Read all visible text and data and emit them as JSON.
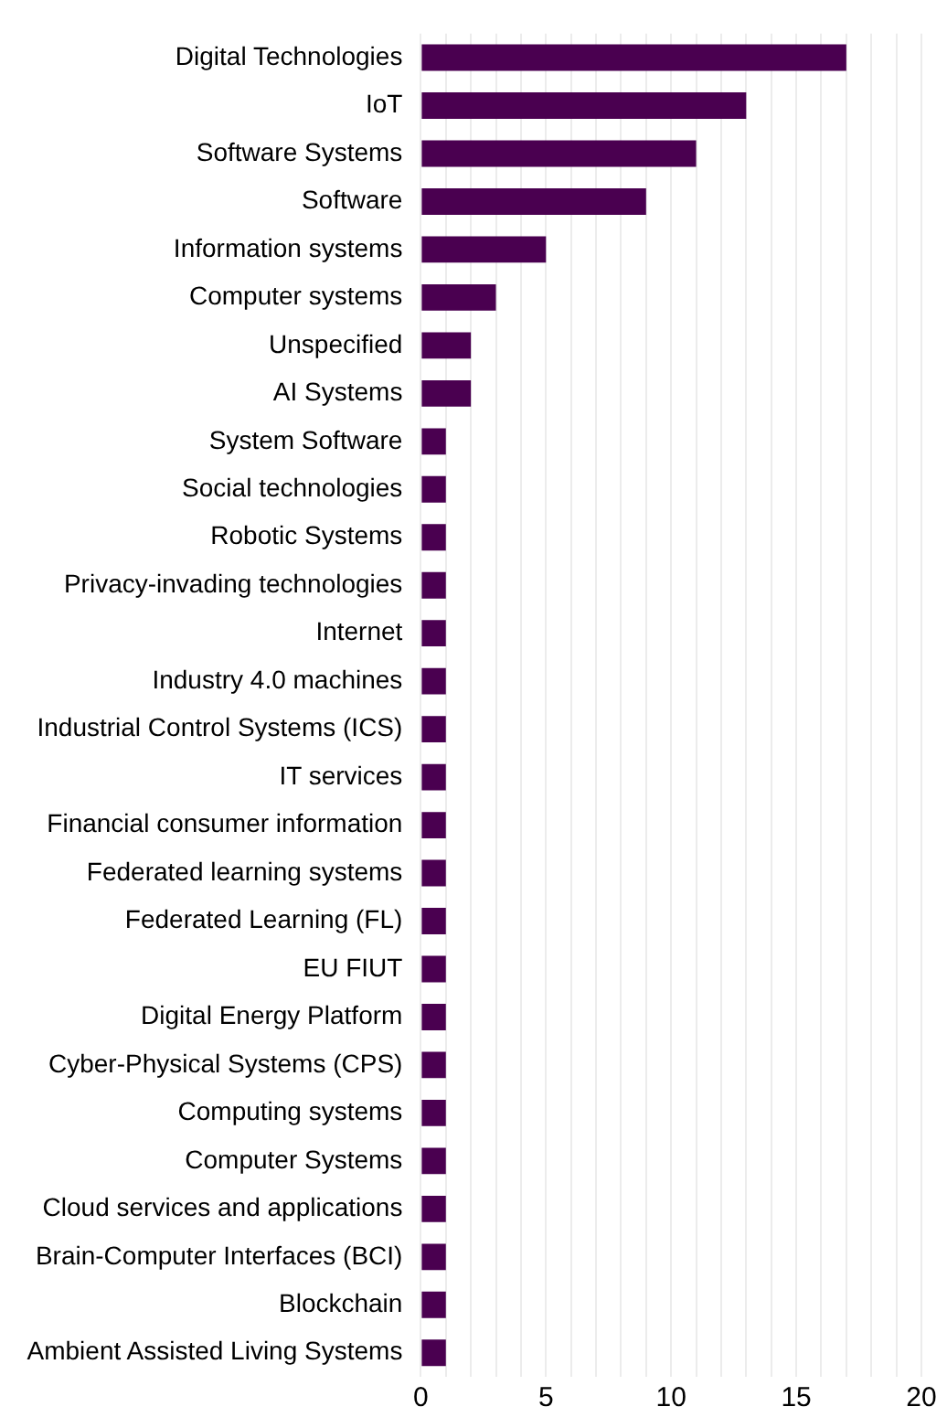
{
  "chart_data": {
    "type": "bar",
    "orientation": "horizontal",
    "categories": [
      "Digital Technologies",
      "IoT",
      "Software Systems",
      "Software",
      "Information systems",
      "Computer systems",
      "Unspecified",
      "AI Systems",
      "System Software",
      "Social technologies",
      "Robotic Systems",
      "Privacy-invading technologies",
      "Internet",
      "Industry 4.0 machines",
      "Industrial Control Systems (ICS)",
      "IT services",
      "Financial consumer information",
      "Federated learning systems",
      "Federated Learning (FL)",
      "EU FIUT",
      "Digital Energy Platform",
      "Cyber-Physical Systems (CPS)",
      "Computing systems",
      "Computer Systems",
      "Cloud services and applications",
      "Brain-Computer Interfaces (BCI)",
      "Blockchain",
      "Ambient Assisted Living Systems"
    ],
    "values": [
      17,
      13,
      11,
      9,
      5,
      3,
      2,
      2,
      1,
      1,
      1,
      1,
      1,
      1,
      1,
      1,
      1,
      1,
      1,
      1,
      1,
      1,
      1,
      1,
      1,
      1,
      1,
      1
    ],
    "color": "#4a0050",
    "xlim": [
      0,
      20
    ],
    "xticks": [
      0,
      {
        "value": 1,
        "label": null
      },
      {
        "value": 2,
        "label": null
      },
      {
        "value": 3,
        "label": null
      },
      {
        "value": 4,
        "label": null
      },
      5,
      {
        "value": 6,
        "label": null
      },
      {
        "value": 7,
        "label": null
      },
      {
        "value": 8,
        "label": null
      },
      {
        "value": 9,
        "label": null
      },
      10,
      {
        "value": 11,
        "label": null
      },
      {
        "value": 12,
        "label": null
      },
      {
        "value": 13,
        "label": null
      },
      {
        "value": 14,
        "label": null
      },
      15,
      {
        "value": 16,
        "label": null
      },
      {
        "value": 17,
        "label": null
      },
      {
        "value": 18,
        "label": null
      },
      {
        "value": 19,
        "label": null
      },
      20
    ],
    "grid": "x",
    "legend": false
  }
}
